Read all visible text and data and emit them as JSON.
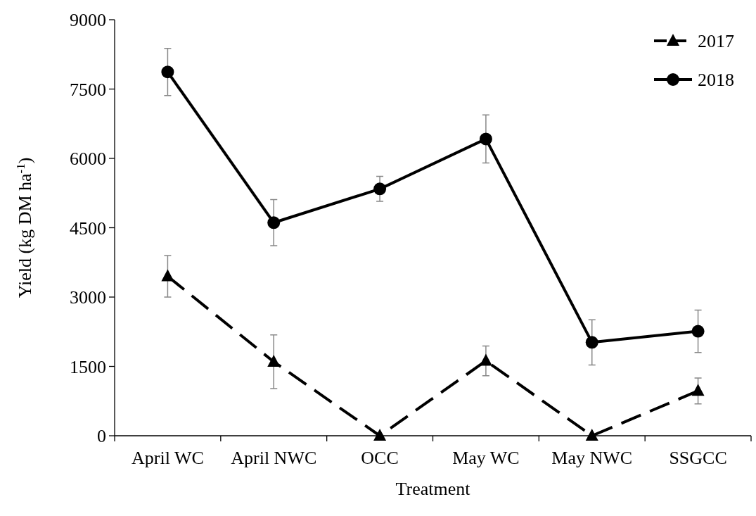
{
  "chart_data": {
    "type": "line",
    "xlabel": "Treatment",
    "ylabel": "Yield (kg DM ha$^{-1}$)",
    "categories": [
      "April WC",
      "April NWC",
      "OCC",
      "May WC",
      "May NWC",
      "SSGCC"
    ],
    "ylim": [
      0,
      9000
    ],
    "yticks": [
      0,
      1500,
      3000,
      4500,
      6000,
      7500,
      9000
    ],
    "legend": "top right",
    "series": [
      {
        "name": "2017",
        "color": "#000000",
        "marker": "triangle",
        "line_style": "dashed",
        "values": [
          3450,
          1600,
          0,
          1620,
          0,
          970
        ],
        "errors": [
          450,
          580,
          null,
          320,
          null,
          280
        ]
      },
      {
        "name": "2018",
        "color": "#000000",
        "marker": "circle",
        "line_style": "solid",
        "values": [
          7870,
          4610,
          5340,
          6420,
          2020,
          2260
        ],
        "errors": [
          510,
          500,
          270,
          520,
          490,
          460
        ]
      }
    ]
  }
}
